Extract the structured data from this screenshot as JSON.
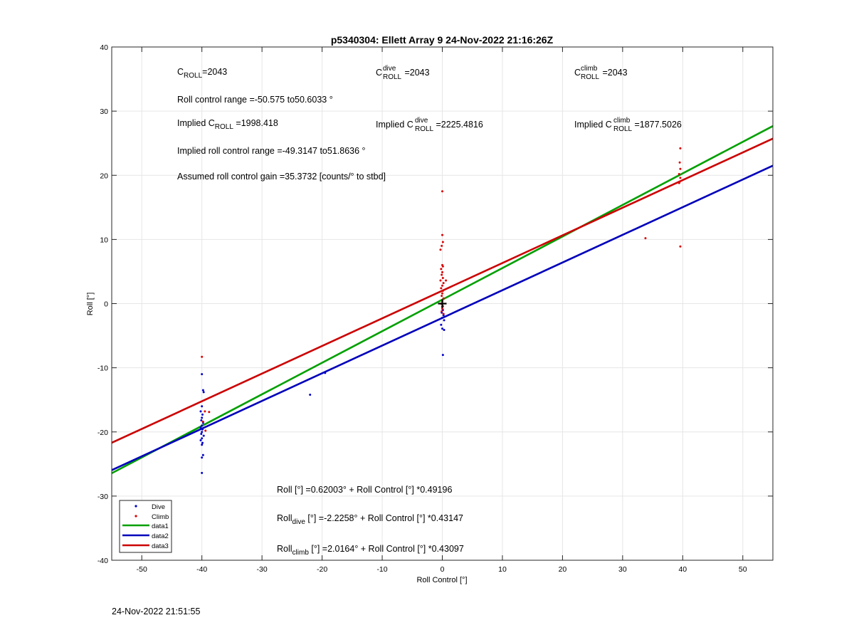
{
  "chart_data": {
    "type": "scatter",
    "title": "p5340304: Ellett Array 9 24-Nov-2022 21:16:26Z",
    "xlabel": "Roll Control [°]",
    "ylabel": "Roll [°]",
    "xlim": [
      -55,
      55
    ],
    "ylim": [
      -40,
      40
    ],
    "x_ticks": [
      -50,
      -40,
      -30,
      -20,
      -10,
      0,
      10,
      20,
      30,
      40,
      50
    ],
    "y_ticks": [
      -40,
      -30,
      -20,
      -10,
      0,
      10,
      20,
      30,
      40
    ],
    "grid": true,
    "legend_position": "bottom-left",
    "legend": [
      "Dive",
      "Climb",
      "data1",
      "data2",
      "data3"
    ],
    "colors": {
      "dive": "#0000cc",
      "climb": "#dd0000",
      "data1": "#00a000",
      "data2": "#0000bb",
      "data3": "#cc0000",
      "center_marker": "#000000"
    },
    "series": [
      {
        "name": "Dive",
        "kind": "points",
        "points": [
          [
            -40,
            -11
          ],
          [
            -39.8,
            -13.5
          ],
          [
            -39.7,
            -13.8
          ],
          [
            -40,
            -16
          ],
          [
            -40.2,
            -16.8
          ],
          [
            -39.9,
            -17.3
          ],
          [
            -40,
            -17.8
          ],
          [
            -40.1,
            -18.2
          ],
          [
            -39.8,
            -18.6
          ],
          [
            -40,
            -19
          ],
          [
            -40.2,
            -19.3
          ],
          [
            -39.9,
            -19.6
          ],
          [
            -40,
            -20
          ],
          [
            -40.1,
            -20.3
          ],
          [
            -39.7,
            -20.6
          ],
          [
            -40,
            -21
          ],
          [
            -40.2,
            -21.3
          ],
          [
            -39.9,
            -21.7
          ],
          [
            -40,
            -22
          ],
          [
            -39.8,
            -23.6
          ],
          [
            -40,
            -24
          ],
          [
            -40,
            -26.4
          ],
          [
            -22,
            -14.2
          ],
          [
            -19.5,
            -10.8
          ],
          [
            0,
            -0.5
          ],
          [
            0.1,
            -1
          ],
          [
            -0.1,
            -1.4
          ],
          [
            0.2,
            -1.8
          ],
          [
            0,
            -2.2
          ],
          [
            0.3,
            -2.6
          ],
          [
            -0.2,
            -3.3
          ],
          [
            0,
            -3.9
          ],
          [
            0.3,
            -4.1
          ],
          [
            0.1,
            -8
          ]
        ]
      },
      {
        "name": "Climb",
        "kind": "points",
        "points": [
          [
            -40,
            -8.3
          ],
          [
            -39.5,
            -16.8
          ],
          [
            -39.8,
            -18.4
          ],
          [
            -38.8,
            -16.9
          ],
          [
            -39.4,
            -19.8
          ],
          [
            0,
            17.5
          ],
          [
            0,
            10.7
          ],
          [
            0.1,
            9.6
          ],
          [
            -0.1,
            9
          ],
          [
            -0.3,
            8.4
          ],
          [
            0,
            6
          ],
          [
            0.1,
            5.8
          ],
          [
            -0.2,
            5.4
          ],
          [
            0,
            4.9
          ],
          [
            -0.1,
            4.5
          ],
          [
            0.1,
            4
          ],
          [
            -0.3,
            3.6
          ],
          [
            0.2,
            3.2
          ],
          [
            0,
            2.8
          ],
          [
            -0.2,
            2.4
          ],
          [
            0.1,
            2
          ],
          [
            0,
            1.6
          ],
          [
            -0.1,
            1.2
          ],
          [
            0.2,
            0.8
          ],
          [
            0,
            0.4
          ],
          [
            -0.2,
            0
          ],
          [
            0.1,
            -0.4
          ],
          [
            0,
            -0.8
          ],
          [
            -0.1,
            -1.2
          ],
          [
            0.2,
            -1.6
          ],
          [
            0.6,
            3.6
          ],
          [
            39.6,
            24.2
          ],
          [
            39.5,
            22
          ],
          [
            39.6,
            21
          ],
          [
            39.4,
            20.2
          ],
          [
            39.6,
            19.6
          ],
          [
            39.5,
            19
          ],
          [
            39.4,
            18.8
          ],
          [
            33.8,
            10.2
          ],
          [
            39.6,
            8.9
          ]
        ]
      },
      {
        "name": "data1",
        "kind": "line",
        "intercept": 0.62003,
        "slope": 0.49196
      },
      {
        "name": "data2",
        "kind": "line",
        "intercept": -2.2258,
        "slope": 0.43147
      },
      {
        "name": "data3",
        "kind": "line",
        "intercept": 2.0164,
        "slope": 0.43097
      }
    ],
    "center_marker": [
      0,
      0
    ]
  },
  "annotations": {
    "c_roll": {
      "sym": "C",
      "sub": "ROLL",
      "val": "=2043"
    },
    "c_roll_dive": {
      "sym": "C",
      "sup": "dive",
      "sub": "ROLL",
      "val": " =2043"
    },
    "c_roll_climb": {
      "sym": "C",
      "sup": "climb",
      "sub": "ROLL",
      "val": " =2043"
    },
    "roll_range": "Roll control range =-50.575 to50.6033 °",
    "implied_c": {
      "prefix": "Implied C",
      "sub": "ROLL",
      "val": " =1998.418"
    },
    "implied_c_dive": {
      "prefix": "Implied C",
      "sup": "dive",
      "sub": "ROLL",
      "val": " =2225.4816"
    },
    "implied_c_climb": {
      "prefix": "Implied C",
      "sup": "climb",
      "sub": "ROLL",
      "val": " =1877.5026"
    },
    "implied_range": "Implied roll control range =-49.3147 to51.8636 °",
    "gain": "Assumed roll control gain =35.3732 [counts/° to stbd]",
    "eq_all": "Roll [°] =0.62003° + Roll Control [°] *0.49196",
    "eq_dive": {
      "prefix": "Roll",
      "sub": "dive",
      "rest": " [°] =-2.2258° + Roll Control [°] *0.43147"
    },
    "eq_climb": {
      "prefix": "Roll",
      "sub": "climb",
      "rest": " [°] =2.0164° + Roll Control [°] *0.43097"
    }
  },
  "footer_timestamp": "24-Nov-2022 21:51:55"
}
